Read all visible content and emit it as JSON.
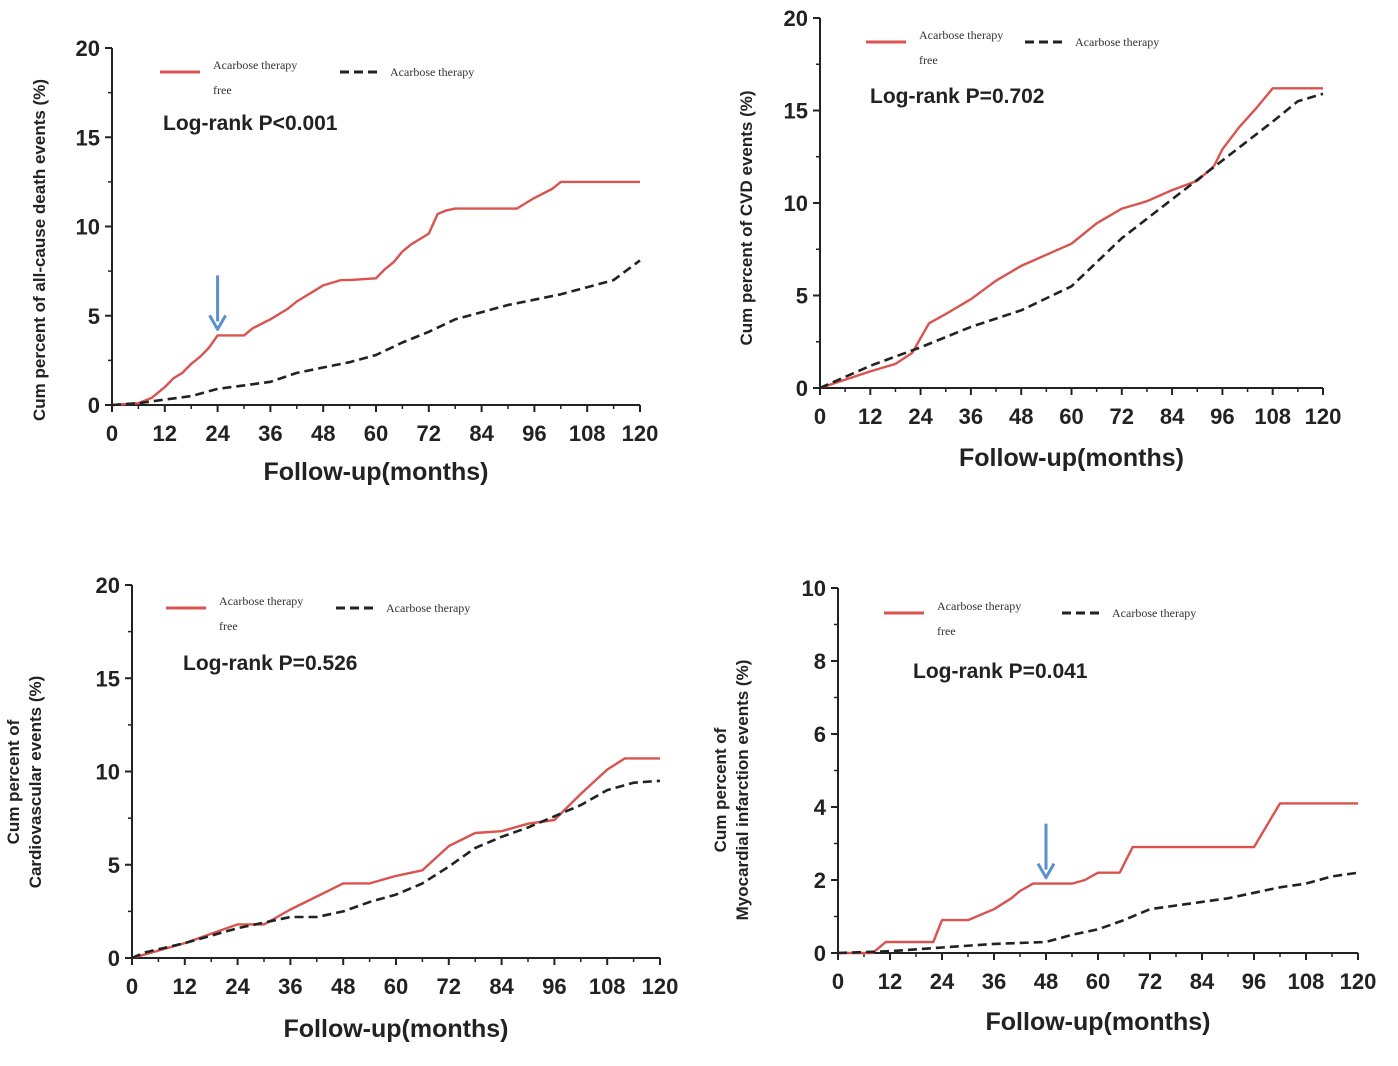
{
  "chart_data": [
    {
      "type": "line",
      "title": "",
      "xlabel": "Follow-up(months)",
      "ylabel": [
        "Cum percent of all-cause death events (%)"
      ],
      "xlim": [
        0,
        120
      ],
      "ylim": [
        0,
        20
      ],
      "xticks": [
        0,
        12,
        24,
        36,
        48,
        60,
        72,
        84,
        96,
        108,
        120
      ],
      "yticks": [
        0,
        5,
        10,
        15,
        20
      ],
      "legend": {
        "entries": [
          "Acarbose therapy free",
          "Acarbose therapy"
        ],
        "placement": "top-left"
      },
      "annotation": "Log-rank  P<0.001",
      "arrow_at_x": 24,
      "series": [
        {
          "name": "Acarbose therapy free",
          "color": "#d9534f",
          "style": "solid",
          "x": [
            0,
            6,
            9,
            12,
            14,
            16,
            18,
            20,
            22,
            24,
            27,
            30,
            32,
            36,
            40,
            42,
            44,
            46,
            48,
            52,
            54,
            60,
            62,
            64,
            66,
            68,
            70,
            72,
            74,
            76,
            78,
            84,
            88,
            92,
            96,
            100,
            102,
            108,
            120
          ],
          "y": [
            0,
            0.1,
            0.4,
            1.0,
            1.5,
            1.8,
            2.3,
            2.7,
            3.2,
            3.9,
            3.9,
            3.9,
            4.3,
            4.8,
            5.4,
            5.8,
            6.1,
            6.4,
            6.7,
            7.0,
            7.0,
            7.1,
            7.6,
            8.0,
            8.6,
            9.0,
            9.3,
            9.6,
            10.7,
            10.9,
            11.0,
            11.0,
            11.0,
            11.0,
            11.6,
            12.1,
            12.5,
            12.5,
            12.5
          ]
        },
        {
          "name": "Acarbose therapy",
          "color": "#222222",
          "style": "dashed",
          "x": [
            0,
            6,
            12,
            18,
            24,
            30,
            36,
            42,
            48,
            54,
            60,
            66,
            72,
            78,
            84,
            90,
            96,
            102,
            108,
            114,
            120
          ],
          "y": [
            0,
            0.1,
            0.3,
            0.5,
            0.9,
            1.1,
            1.3,
            1.8,
            2.1,
            2.4,
            2.8,
            3.5,
            4.1,
            4.8,
            5.2,
            5.6,
            5.9,
            6.2,
            6.6,
            7.0,
            8.1
          ]
        }
      ]
    },
    {
      "type": "line",
      "title": "",
      "xlabel": "Follow-up(months)",
      "ylabel": [
        "Cum percent of CVD events (%)"
      ],
      "xlim": [
        0,
        120
      ],
      "ylim": [
        0,
        20
      ],
      "xticks": [
        0,
        12,
        24,
        36,
        48,
        60,
        72,
        84,
        96,
        108,
        120
      ],
      "yticks": [
        0,
        5,
        10,
        15,
        20
      ],
      "legend": {
        "entries": [
          "Acarbose therapy free",
          "Acarbose therapy"
        ],
        "placement": "top-left"
      },
      "annotation": "Log-rank  P=0.702",
      "series": [
        {
          "name": "Acarbose therapy free",
          "color": "#d9534f",
          "style": "solid",
          "x": [
            0,
            12,
            18,
            22,
            26,
            30,
            36,
            42,
            48,
            54,
            60,
            66,
            72,
            78,
            84,
            90,
            94,
            96,
            100,
            104,
            108,
            120
          ],
          "y": [
            0,
            0.9,
            1.3,
            1.9,
            3.5,
            4.0,
            4.8,
            5.8,
            6.6,
            7.2,
            7.8,
            8.9,
            9.7,
            10.1,
            10.7,
            11.2,
            12.0,
            12.9,
            14.1,
            15.1,
            16.2,
            16.2
          ]
        },
        {
          "name": "Acarbose therapy",
          "color": "#222222",
          "style": "dashed",
          "x": [
            0,
            12,
            24,
            36,
            48,
            60,
            72,
            84,
            96,
            108,
            114,
            120
          ],
          "y": [
            0,
            1.2,
            2.2,
            3.3,
            4.2,
            5.5,
            8.1,
            10.2,
            12.3,
            14.4,
            15.5,
            15.9
          ]
        }
      ]
    },
    {
      "type": "line",
      "title": "",
      "xlabel": "Follow-up(months)",
      "ylabel": [
        "Cum percent of",
        "Cardiovascular events (%)"
      ],
      "xlim": [
        0,
        120
      ],
      "ylim": [
        0,
        20
      ],
      "xticks": [
        0,
        12,
        24,
        36,
        48,
        60,
        72,
        84,
        96,
        108,
        120
      ],
      "yticks": [
        0,
        5,
        10,
        15,
        20
      ],
      "legend": {
        "entries": [
          "Acarbose therapy free",
          "Acarbose therapy"
        ],
        "placement": "top-left"
      },
      "annotation": "Log-rank  P=0.526",
      "series": [
        {
          "name": "Acarbose therapy free",
          "color": "#d9534f",
          "style": "solid",
          "x": [
            0,
            3,
            12,
            24,
            30,
            36,
            42,
            48,
            54,
            60,
            66,
            72,
            78,
            84,
            90,
            96,
            102,
            108,
            112,
            120
          ],
          "y": [
            0,
            0.2,
            0.8,
            1.8,
            1.8,
            2.6,
            3.3,
            4.0,
            4.0,
            4.4,
            4.7,
            6.0,
            6.7,
            6.8,
            7.2,
            7.4,
            8.8,
            10.1,
            10.7,
            10.7
          ]
        },
        {
          "name": "Acarbose therapy",
          "color": "#222222",
          "style": "dashed",
          "x": [
            0,
            3,
            12,
            24,
            36,
            42,
            48,
            54,
            60,
            66,
            72,
            78,
            84,
            90,
            96,
            102,
            108,
            114,
            120
          ],
          "y": [
            0,
            0.3,
            0.8,
            1.6,
            2.2,
            2.2,
            2.5,
            3.0,
            3.4,
            4.0,
            4.9,
            5.9,
            6.5,
            7.0,
            7.6,
            8.2,
            9.0,
            9.4,
            9.5
          ]
        }
      ]
    },
    {
      "type": "line",
      "title": "",
      "xlabel": "Follow-up(months)",
      "ylabel": [
        "Cum percent of",
        "Myocardial infarction events (%)"
      ],
      "xlim": [
        0,
        120
      ],
      "ylim": [
        0,
        10
      ],
      "xticks": [
        0,
        12,
        24,
        36,
        48,
        60,
        72,
        84,
        96,
        108,
        120
      ],
      "yticks": [
        0,
        2,
        4,
        6,
        8,
        10
      ],
      "legend": {
        "entries": [
          "Acarbose therapy free",
          "Acarbose therapy"
        ],
        "placement": "top-left"
      },
      "annotation": "Log-rank  P=0.041",
      "arrow_at_x": 48,
      "series": [
        {
          "name": "Acarbose therapy free",
          "color": "#d9534f",
          "style": "solid",
          "x": [
            0,
            8,
            11,
            22,
            24,
            30,
            36,
            40,
            42,
            45,
            48,
            54,
            57,
            60,
            65,
            68,
            72,
            84,
            96,
            100,
            102,
            108,
            120
          ],
          "y": [
            0,
            0,
            0.3,
            0.3,
            0.9,
            0.9,
            1.2,
            1.5,
            1.7,
            1.9,
            1.9,
            1.9,
            2.0,
            2.2,
            2.2,
            2.9,
            2.9,
            2.9,
            2.9,
            3.7,
            4.1,
            4.1,
            4.1
          ]
        },
        {
          "name": "Acarbose therapy",
          "color": "#222222",
          "style": "dashed",
          "x": [
            0,
            12,
            24,
            36,
            48,
            54,
            60,
            66,
            72,
            78,
            84,
            90,
            96,
            102,
            108,
            114,
            120
          ],
          "y": [
            0,
            0.05,
            0.15,
            0.25,
            0.3,
            0.5,
            0.65,
            0.9,
            1.2,
            1.3,
            1.4,
            1.5,
            1.65,
            1.8,
            1.9,
            2.1,
            2.2
          ]
        }
      ]
    }
  ]
}
